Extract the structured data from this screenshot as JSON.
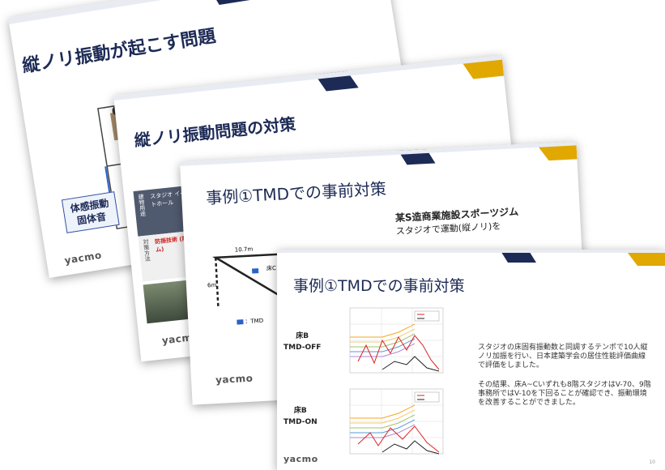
{
  "slides": [
    {
      "title": "縦ノリ振動が起こす問題",
      "tag_lines": [
        "体感振動",
        "固体音"
      ],
      "logo": "yacmo"
    },
    {
      "title": "縦ノリ振動問題の対策",
      "table_cells": [
        "スタジオ イベントホール",
        "建物用途",
        "防振技術 (防振ゴム)",
        "対策方法"
      ],
      "logo": "yacmo"
    },
    {
      "title": "事例①TMDでの事前対策",
      "subtitle": "某S造商業施設スポーツジム",
      "subtitle_line2": "スタジオで運動(縦ノリ)を",
      "plan_labels": [
        "10.7m",
        "6m",
        "床C",
        "：TMD"
      ],
      "logo": "yacmo"
    },
    {
      "title": "事例①TMDでの事前対策",
      "floor_b_off": [
        "床B",
        "TMD-OFF"
      ],
      "floor_b_on": [
        "床B",
        "TMD-ON"
      ],
      "description_1": "スタジオの床固有振動数と同調するテンポで10人縦ノリ加振を行い、日本建築学会の居住性能評価曲線で評価をしました。",
      "description_2": "その結果、床A~Cいずれも8階スタジオはV-70、9階事務所ではV-10を下回ることが確認でき、振動環境を改善することができました。",
      "logo": "yacmo",
      "page_number": "10"
    }
  ],
  "colors": {
    "navy": "#1c2a55",
    "gold": "#e0a800",
    "accent_blue": "#2b62c8"
  }
}
